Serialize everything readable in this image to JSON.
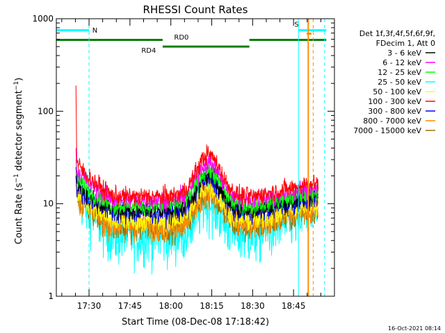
{
  "chart_data": {
    "type": "line",
    "title": "RHESSI Count Rates",
    "xlabel": "Start Time (08-Dec-08 17:18:42)",
    "ylabel_parts": [
      "Count Rate (s",
      "−1",
      " detector segment",
      "−1",
      ")"
    ],
    "y_scale": "log",
    "ylim": [
      1,
      1000
    ],
    "y_ticks": [
      {
        "value": 1,
        "label": "1"
      },
      {
        "value": 10,
        "label": "10"
      },
      {
        "value": 100,
        "label": "100"
      },
      {
        "value": 1000,
        "label": "1000"
      }
    ],
    "xlim_minutes": [
      17.3,
      19.0
    ],
    "x_ticks": [
      {
        "value": 17.5,
        "label": "17:30"
      },
      {
        "value": 17.75,
        "label": "17:45"
      },
      {
        "value": 18.0,
        "label": "18:00"
      },
      {
        "value": 18.25,
        "label": "18:15"
      },
      {
        "value": 18.5,
        "label": "18:30"
      },
      {
        "value": 18.75,
        "label": "18:45"
      }
    ],
    "legend_header": [
      "Det 1f,3f,4f,5f,6f,9f,",
      "FDecim 1, Att 0"
    ],
    "legend_position": "right",
    "series": [
      {
        "name": "3 - 6 keV",
        "color": "#000000"
      },
      {
        "name": "6 - 12 keV",
        "color": "#ff00ff"
      },
      {
        "name": "12 - 25 keV",
        "color": "#00ff00"
      },
      {
        "name": "25 - 50 keV",
        "color": "#00ffff"
      },
      {
        "name": "50 - 100 keV",
        "color": "#ffff00"
      },
      {
        "name": "100 - 300 keV",
        "color": "#ff0000"
      },
      {
        "name": "300 - 800 keV",
        "color": "#0000ff"
      },
      {
        "name": "800 - 7000 keV",
        "color": "#ff8c00"
      },
      {
        "name": "7000 - 15000 keV",
        "color": "#a07000"
      }
    ],
    "plotted_series": [
      {
        "key": "cyan",
        "color": "#00ffff",
        "spike": 20,
        "start": 15,
        "pre": 11,
        "base": 4.5,
        "peak": 10.5,
        "end": 8.5,
        "noise": 0.16
      },
      {
        "key": "brown",
        "color": "#a07000",
        "spike": 20,
        "start": 14,
        "pre": 11,
        "base": 5.5,
        "peak": 13,
        "end": 9.0,
        "noise": 0.08
      },
      {
        "key": "orange",
        "color": "#ff8c00",
        "spike": 20,
        "start": 14,
        "pre": 11,
        "base": 6.0,
        "peak": 14,
        "end": 9.5,
        "noise": 0.09
      },
      {
        "key": "yellow",
        "color": "#ffff00",
        "spike": 20,
        "start": 15,
        "pre": 12,
        "base": 6.5,
        "peak": 15,
        "end": 10,
        "noise": 0.06
      },
      {
        "key": "blue",
        "color": "#0000ff",
        "spike": 20,
        "start": 16,
        "pre": 13,
        "base": 8.0,
        "peak": 18.5,
        "end": 12,
        "noise": 0.06
      },
      {
        "key": "black",
        "color": "#000000",
        "spike": 25,
        "start": 18,
        "pre": 14,
        "base": 8.5,
        "peak": 20.5,
        "end": 12.5,
        "noise": 0.05
      },
      {
        "key": "green",
        "color": "#00ff00",
        "spike": 30,
        "start": 20,
        "pre": 15,
        "base": 9.5,
        "peak": 23,
        "end": 13.5,
        "noise": 0.05
      },
      {
        "key": "magenta",
        "color": "#ff00ff",
        "spike": 40,
        "start": 25,
        "pre": 18,
        "base": 11,
        "peak": 28,
        "end": 15,
        "noise": 0.05
      },
      {
        "key": "red",
        "color": "#ff0000",
        "spike": 190,
        "start": 30,
        "pre": 21,
        "base": 12,
        "peak": 34,
        "end": 17,
        "noise": 0.05
      }
    ],
    "data_start_minutes": 17.42,
    "data_end_minutes": 18.9,
    "peak_time_minutes": 18.23,
    "baseline_span_minutes": [
      17.65,
      18.5
    ],
    "flag_bars": [
      {
        "label": "N",
        "color": "#00ffff",
        "x_from": 17.3,
        "x_to": 17.5,
        "value": 750,
        "label_at": 17.52
      },
      {
        "label": "S",
        "color": "#00ffff",
        "x_from": 18.78,
        "x_to": 18.95,
        "value": 750,
        "label_at": 18.77
      },
      {
        "label": "RD0",
        "color": "#008000",
        "x_from": 17.3,
        "x_to": 17.95,
        "value": 590,
        "label_at": 18.02
      },
      {
        "label": "RD0_cont",
        "color": "#008000",
        "x_from": 18.48,
        "x_to": 18.95,
        "value": 590,
        "label_at": null
      },
      {
        "label": "RD4",
        "color": "#008000",
        "x_from": 17.95,
        "x_to": 18.48,
        "value": 500,
        "label_at": 17.82
      }
    ],
    "flag_labels": {
      "N": "N",
      "S": "S",
      "RD0": "RD0",
      "RD4": "RD4"
    },
    "vertical_markers": [
      {
        "x": 17.5,
        "color": "#00ffff",
        "style": "dashed"
      },
      {
        "x": 18.78,
        "color": "#00ffff",
        "style": "solid"
      },
      {
        "x": 18.84,
        "color": "#ff8c00",
        "style": "solid"
      },
      {
        "x": 18.87,
        "color": "#ff8c00",
        "style": "dashed"
      },
      {
        "x": 18.94,
        "color": "#00ffff",
        "style": "dashed"
      }
    ],
    "s_orange_mark": {
      "x_from": 18.83,
      "x_to": 18.86,
      "value": 690,
      "color": "#ff8c00"
    }
  },
  "timestamp": "16-Oct-2021 08:14"
}
